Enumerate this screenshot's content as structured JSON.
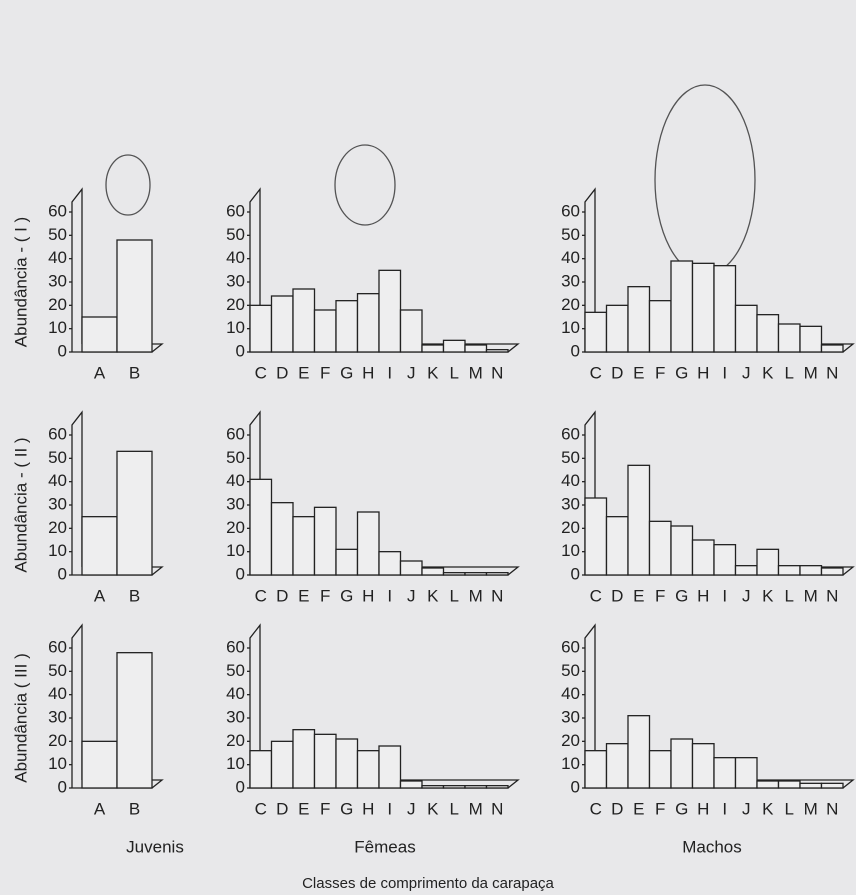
{
  "row_labels": [
    "Abundância - ( I )",
    "Abundância - ( II )",
    "Abundância  ( III )"
  ],
  "column_labels": [
    "Juvenis",
    "Fêmeas",
    "Machos"
  ],
  "xlabel": "Classes de comprimento da carapaça",
  "chart_data": [
    {
      "type": "bar",
      "categories": [
        "A",
        "B"
      ],
      "values": [
        15,
        48
      ],
      "ylim": [
        0,
        60
      ],
      "yticks": [
        0,
        10,
        20,
        30,
        40,
        50,
        60
      ]
    },
    {
      "type": "bar",
      "categories": [
        "C",
        "D",
        "E",
        "F",
        "G",
        "H",
        "I",
        "J",
        "K",
        "L",
        "M",
        "N"
      ],
      "values": [
        20,
        24,
        27,
        18,
        22,
        25,
        35,
        18,
        3,
        5,
        3,
        1
      ],
      "ylim": [
        0,
        60
      ],
      "yticks": [
        0,
        10,
        20,
        30,
        40,
        50,
        60
      ]
    },
    {
      "type": "bar",
      "categories": [
        "C",
        "D",
        "E",
        "F",
        "G",
        "H",
        "I",
        "J",
        "K",
        "L",
        "M",
        "N"
      ],
      "values": [
        17,
        20,
        28,
        22,
        39,
        38,
        37,
        20,
        16,
        12,
        11,
        3
      ],
      "ylim": [
        0,
        60
      ],
      "yticks": [
        0,
        10,
        20,
        30,
        40,
        50,
        60
      ]
    },
    {
      "type": "bar",
      "categories": [
        "A",
        "B"
      ],
      "values": [
        25,
        53
      ],
      "ylim": [
        0,
        60
      ],
      "yticks": [
        0,
        10,
        20,
        30,
        40,
        50,
        60
      ]
    },
    {
      "type": "bar",
      "categories": [
        "C",
        "D",
        "E",
        "F",
        "G",
        "H",
        "I",
        "J",
        "K",
        "L",
        "M",
        "N"
      ],
      "values": [
        41,
        31,
        25,
        29,
        11,
        27,
        10,
        6,
        3,
        1,
        1,
        1
      ],
      "ylim": [
        0,
        60
      ],
      "yticks": [
        0,
        10,
        20,
        30,
        40,
        50,
        60
      ]
    },
    {
      "type": "bar",
      "categories": [
        "C",
        "D",
        "E",
        "F",
        "G",
        "H",
        "I",
        "J",
        "K",
        "L",
        "M",
        "N"
      ],
      "values": [
        33,
        25,
        47,
        23,
        21,
        15,
        13,
        4,
        11,
        4,
        4,
        3
      ],
      "ylim": [
        0,
        60
      ],
      "yticks": [
        0,
        10,
        20,
        30,
        40,
        50,
        60
      ]
    },
    {
      "type": "bar",
      "categories": [
        "A",
        "B"
      ],
      "values": [
        20,
        58
      ],
      "ylim": [
        0,
        60
      ],
      "yticks": [
        0,
        10,
        20,
        30,
        40,
        50,
        60
      ]
    },
    {
      "type": "bar",
      "categories": [
        "C",
        "D",
        "E",
        "F",
        "G",
        "H",
        "I",
        "J",
        "K",
        "L",
        "M",
        "N"
      ],
      "values": [
        16,
        20,
        25,
        23,
        21,
        16,
        18,
        3,
        1,
        1,
        1,
        1
      ],
      "ylim": [
        0,
        60
      ],
      "yticks": [
        0,
        10,
        20,
        30,
        40,
        50,
        60
      ]
    },
    {
      "type": "bar",
      "categories": [
        "C",
        "D",
        "E",
        "F",
        "G",
        "H",
        "I",
        "J",
        "K",
        "L",
        "M",
        "N"
      ],
      "values": [
        16,
        19,
        31,
        16,
        21,
        19,
        13,
        13,
        3,
        3,
        2,
        2
      ],
      "ylim": [
        0,
        60
      ],
      "yticks": [
        0,
        10,
        20,
        30,
        40,
        50,
        60
      ]
    }
  ]
}
